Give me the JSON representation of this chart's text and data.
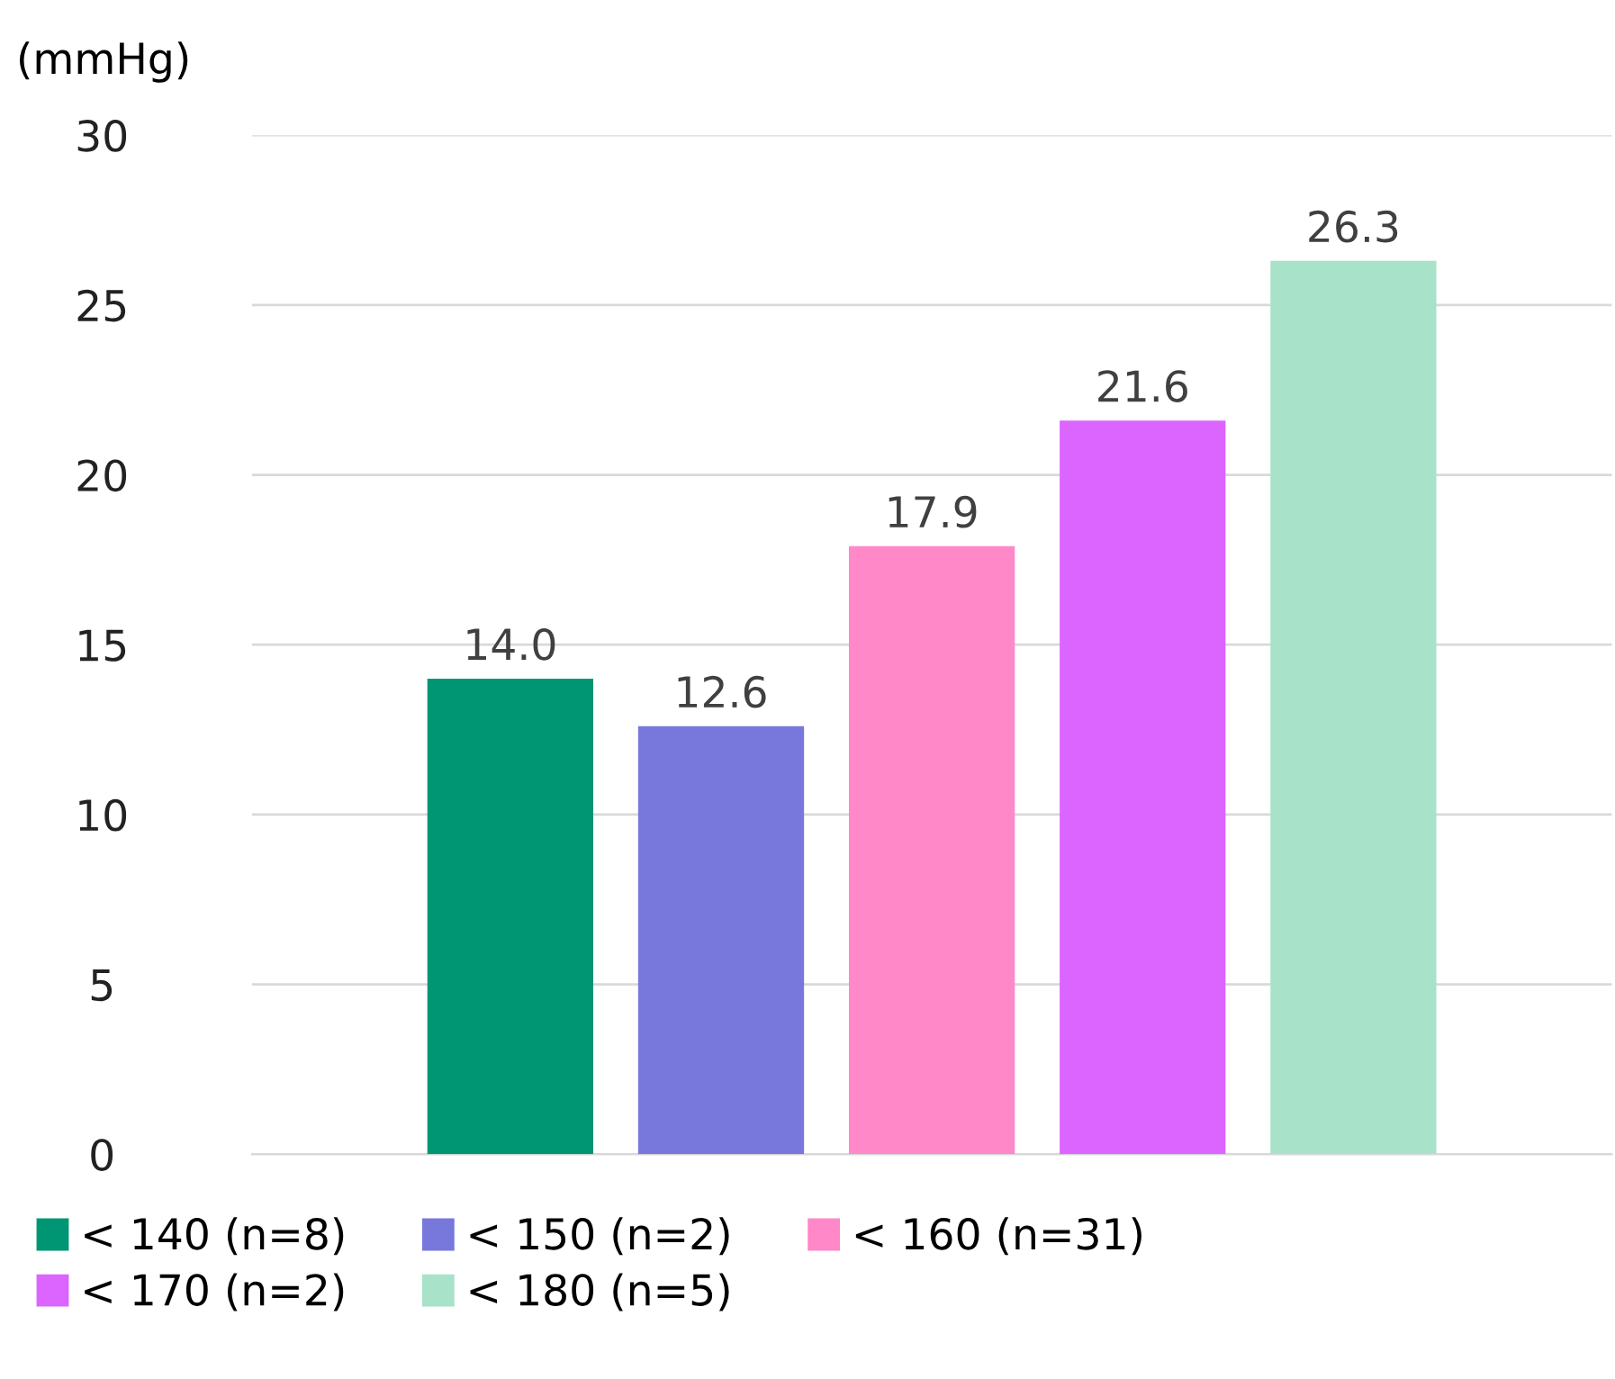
{
  "chart_data": {
    "type": "bar",
    "ylabel": "(mmHg)",
    "categories": [
      null
    ],
    "series": [
      {
        "name": "< 140 (n=8)",
        "color": "#009673",
        "values": [
          14.0
        ],
        "value_labels": [
          "14.0"
        ]
      },
      {
        "name": "< 150 (n=2)",
        "color": "#7878dc",
        "values": [
          12.6
        ],
        "value_labels": [
          "12.6"
        ]
      },
      {
        "name": "< 160 (n=31)",
        "color": "#ff88c8",
        "values": [
          17.9
        ],
        "value_labels": [
          "17.9"
        ]
      },
      {
        "name": "< 170 (n=2)",
        "color": "#dc64ff",
        "values": [
          21.6
        ],
        "value_labels": [
          "21.6"
        ]
      },
      {
        "name": "< 180 (n=5)",
        "color": "#a8e2c8",
        "values": [
          26.3
        ],
        "value_labels": [
          "26.3"
        ]
      }
    ],
    "ylim": [
      0,
      30
    ],
    "yticks": [
      0,
      5,
      10,
      15,
      20,
      25,
      30
    ],
    "grid": "y",
    "legend": "bottom"
  }
}
